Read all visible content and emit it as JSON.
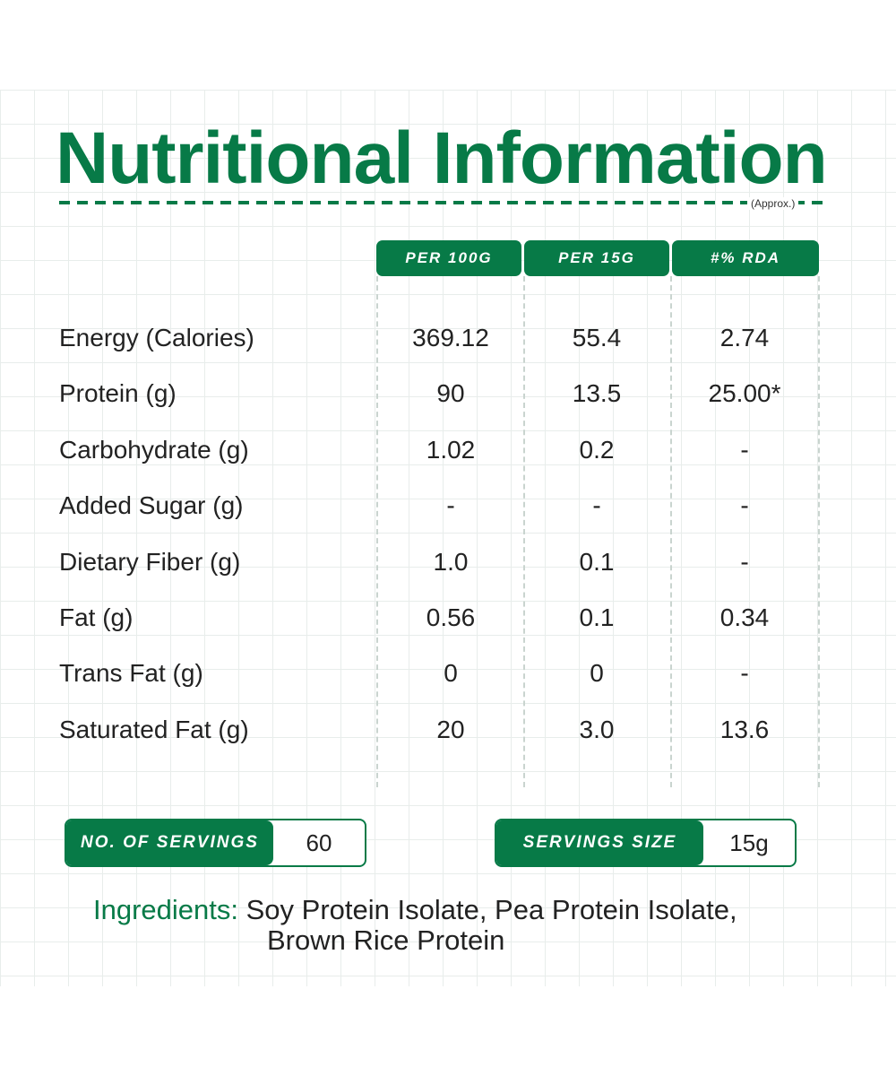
{
  "title": "Nutritional Information",
  "approx": "(Approx.)",
  "columns": [
    "PER 100G",
    "PER 15G",
    "#% RDA"
  ],
  "rows": [
    {
      "label": "Energy (Calories)",
      "values": [
        "369.12",
        "55.4",
        "2.74"
      ]
    },
    {
      "label": "Protein (g)",
      "values": [
        "90",
        "13.5",
        "25.00*"
      ]
    },
    {
      "label": "Carbohydrate (g)",
      "values": [
        "1.02",
        "0.2",
        "-"
      ]
    },
    {
      "label": "Added Sugar (g)",
      "values": [
        "-",
        "-",
        "-"
      ]
    },
    {
      "label": "Dietary Fiber (g)",
      "values": [
        "1.0",
        "0.1",
        "-"
      ]
    },
    {
      "label": "Fat (g)",
      "values": [
        "0.56",
        "0.1",
        "0.34"
      ]
    },
    {
      "label": "Trans Fat (g)",
      "values": [
        "0",
        "0",
        "-"
      ]
    },
    {
      "label": "Saturated Fat (g)",
      "values": [
        "20",
        "3.0",
        "13.6"
      ]
    }
  ],
  "servings": {
    "label": "NO. OF SERVINGS",
    "value": "60"
  },
  "serving_size": {
    "label": "SERVINGS SIZE",
    "value": "15g"
  },
  "ingredients": {
    "label": "Ingredients:",
    "line1": "Soy Protein Isolate, Pea Protein Isolate,",
    "line2": "Brown Rice Protein"
  },
  "colors": {
    "brand_green": "#077a47",
    "grid": "#e6ece9"
  }
}
